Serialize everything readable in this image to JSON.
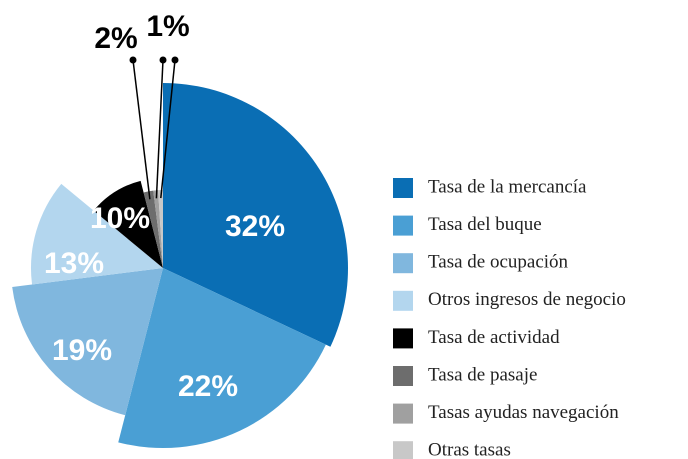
{
  "chart_data": {
    "type": "pie",
    "categories": [
      "Tasa de la mercancía",
      "Tasa del buque",
      "Tasa de ocupación",
      "Otros ingresos de negocio",
      "Tasa de actividad",
      "Tasa de pasaje",
      "Tasas ayudas navegación",
      "Otras tasas"
    ],
    "values": [
      32,
      22,
      19,
      13,
      10,
      2,
      1,
      1
    ],
    "value_labels": [
      "32%",
      "22%",
      "19%",
      "13%",
      "10%",
      "2%",
      "1%",
      null
    ],
    "colors": [
      "#0a6eb4",
      "#4a9fd4",
      "#80b7de",
      "#b3d6ee",
      "#000000",
      "#6d6d6d",
      "#a0a0a0",
      "#c8c8c8"
    ],
    "legend": "right"
  }
}
